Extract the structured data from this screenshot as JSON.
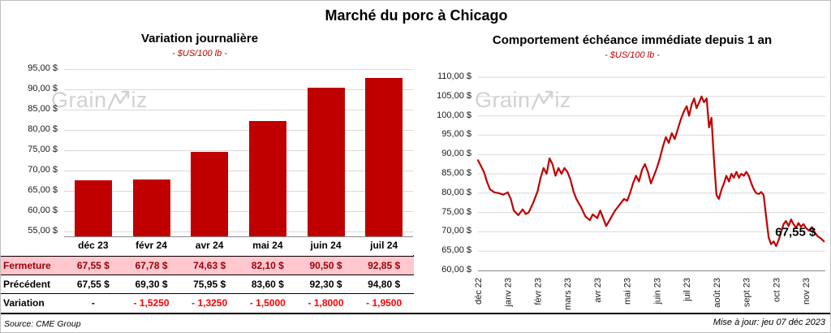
{
  "page_title": "Marché du porc à Chicago",
  "footer": {
    "source": "Source: CME Group",
    "updated": "Mise à jour: jeu 07 déc 2023"
  },
  "watermark": {
    "part1": "Grain",
    "part2": "iz"
  },
  "colors": {
    "accent_red": "#C00000",
    "negative_red": "#FF0000",
    "table_bad_bg": "#FFC7CE",
    "table_bad_text": "#9C0006",
    "gridline": "#D9D9D9",
    "watermark_gray": "#D2D2D2"
  },
  "summary_table": {
    "rows": [
      {
        "label": "Fermeture",
        "style": "bad",
        "values": [
          "67,55 $",
          "67,78 $",
          "74,63 $",
          "82,10 $",
          "90,50 $",
          "92,85 $"
        ]
      },
      {
        "label": "Précédent",
        "style": "plain",
        "values": [
          "67,55 $",
          "69,30 $",
          "75,95 $",
          "83,60 $",
          "92,30 $",
          "94,80 $"
        ]
      },
      {
        "label": "Variation",
        "style": "neg",
        "values": [
          "-",
          "- 1,5250",
          "- 1,3250",
          "- 1,5000",
          "- 1,8000",
          "- 1,9500"
        ]
      }
    ]
  },
  "chart_data": [
    {
      "type": "bar",
      "title": "Variation  journalière",
      "subtitle": "- $US/100 lb -",
      "categories": [
        "déc 23",
        "févr 24",
        "avr 24",
        "mai 24",
        "juin 24",
        "juil 24"
      ],
      "values": [
        67.55,
        67.78,
        74.63,
        82.1,
        90.5,
        92.85
      ],
      "ylim": [
        53.75,
        95
      ],
      "ytick_values": [
        95,
        90,
        85,
        80,
        75,
        70,
        65,
        60,
        55
      ],
      "ytick_labels": [
        "95,00 $",
        "90,00 $",
        "85,00 $",
        "80,00 $",
        "75,00 $",
        "70,00 $",
        "65,00 $",
        "60,00 $",
        "55,00 $"
      ],
      "bar_color": "#C00000",
      "grid": true,
      "legend": "none"
    },
    {
      "type": "line",
      "title": "Comportement  échéance  immédiate  depuis 1 an",
      "subtitle": "- $US/100 lb -",
      "x_months": [
        "déc 22",
        "janv 23",
        "févr 23",
        "mars 23",
        "avr 23",
        "mai 23",
        "juin 23",
        "juil 23",
        "août 23",
        "sept 23",
        "oct 23",
        "nov 23"
      ],
      "xmax": 11.65,
      "ylim": [
        60,
        110
      ],
      "ytick_values": [
        110,
        105,
        100,
        95,
        90,
        85,
        80,
        75,
        70,
        65,
        60
      ],
      "ytick_labels": [
        "110,00 $",
        "105,00 $",
        "100,00 $",
        "95,00 $",
        "90,00 $",
        "85,00 $",
        "80,00 $",
        "75,00 $",
        "70,00 $",
        "65,00 $",
        "60,00 $"
      ],
      "line_color": "#C00000",
      "grid": true,
      "legend": "none",
      "annotation": {
        "text": "67,55 $",
        "x": 10.65,
        "y": 69.8
      },
      "points": [
        [
          0,
          88.5
        ],
        [
          0.1,
          87
        ],
        [
          0.2,
          85.5
        ],
        [
          0.3,
          83
        ],
        [
          0.4,
          81
        ],
        [
          0.55,
          80.2
        ],
        [
          0.7,
          80
        ],
        [
          0.85,
          79.6
        ],
        [
          1,
          80.2
        ],
        [
          1.1,
          78.5
        ],
        [
          1.2,
          75.5
        ],
        [
          1.35,
          74.3
        ],
        [
          1.5,
          75.8
        ],
        [
          1.6,
          74.6
        ],
        [
          1.7,
          75
        ],
        [
          1.85,
          77.5
        ],
        [
          2,
          80.5
        ],
        [
          2.1,
          84
        ],
        [
          2.2,
          86.5
        ],
        [
          2.3,
          85
        ],
        [
          2.4,
          89
        ],
        [
          2.5,
          87.5
        ],
        [
          2.6,
          84.5
        ],
        [
          2.7,
          86.5
        ],
        [
          2.8,
          85
        ],
        [
          2.9,
          86.5
        ],
        [
          3,
          85.5
        ],
        [
          3.1,
          83.5
        ],
        [
          3.2,
          80.5
        ],
        [
          3.3,
          78.5
        ],
        [
          3.45,
          76.5
        ],
        [
          3.6,
          74
        ],
        [
          3.75,
          73
        ],
        [
          3.85,
          74.5
        ],
        [
          4,
          73.5
        ],
        [
          4.1,
          75.5
        ],
        [
          4.2,
          73.5
        ],
        [
          4.3,
          71.5
        ],
        [
          4.45,
          73.5
        ],
        [
          4.6,
          75.5
        ],
        [
          4.75,
          77
        ],
        [
          4.9,
          78.5
        ],
        [
          5,
          78
        ],
        [
          5.1,
          80
        ],
        [
          5.2,
          82.5
        ],
        [
          5.3,
          84.5
        ],
        [
          5.4,
          83
        ],
        [
          5.5,
          86
        ],
        [
          5.6,
          87.5
        ],
        [
          5.7,
          85.5
        ],
        [
          5.8,
          82.5
        ],
        [
          5.9,
          84.5
        ],
        [
          6,
          86.5
        ],
        [
          6.1,
          89
        ],
        [
          6.2,
          92
        ],
        [
          6.3,
          94.5
        ],
        [
          6.4,
          93
        ],
        [
          6.5,
          95.5
        ],
        [
          6.6,
          94
        ],
        [
          6.7,
          96.5
        ],
        [
          6.8,
          99
        ],
        [
          6.9,
          101
        ],
        [
          7,
          102.5
        ],
        [
          7.08,
          100
        ],
        [
          7.17,
          103
        ],
        [
          7.25,
          104.5
        ],
        [
          7.33,
          102
        ],
        [
          7.42,
          103.5
        ],
        [
          7.5,
          105
        ],
        [
          7.58,
          103.5
        ],
        [
          7.67,
          104.5
        ],
        [
          7.75,
          97
        ],
        [
          7.83,
          99.5
        ],
        [
          7.92,
          88
        ],
        [
          8,
          79.5
        ],
        [
          8.08,
          78.5
        ],
        [
          8.17,
          81
        ],
        [
          8.25,
          82.5
        ],
        [
          8.33,
          84.5
        ],
        [
          8.42,
          83
        ],
        [
          8.5,
          85
        ],
        [
          8.58,
          84
        ],
        [
          8.67,
          85.5
        ],
        [
          8.75,
          84
        ],
        [
          8.83,
          85
        ],
        [
          8.92,
          84.5
        ],
        [
          9,
          85.5
        ],
        [
          9.08,
          84.5
        ],
        [
          9.17,
          82.5
        ],
        [
          9.25,
          81
        ],
        [
          9.33,
          80
        ],
        [
          9.42,
          79.8
        ],
        [
          9.5,
          80.3
        ],
        [
          9.58,
          79.5
        ],
        [
          9.67,
          73.5
        ],
        [
          9.75,
          68.5
        ],
        [
          9.83,
          66.8
        ],
        [
          9.92,
          67.5
        ],
        [
          10,
          66.3
        ],
        [
          10.08,
          67.8
        ],
        [
          10.17,
          70
        ],
        [
          10.25,
          72
        ],
        [
          10.33,
          72.8
        ],
        [
          10.42,
          71.5
        ],
        [
          10.5,
          73.2
        ],
        [
          10.58,
          72
        ],
        [
          10.67,
          71
        ],
        [
          10.75,
          72.3
        ],
        [
          10.83,
          71.3
        ],
        [
          10.92,
          72
        ],
        [
          11,
          71
        ],
        [
          11.1,
          70.3
        ],
        [
          11.2,
          71.2
        ],
        [
          11.3,
          69.8
        ],
        [
          11.4,
          68.8
        ],
        [
          11.5,
          68.3
        ],
        [
          11.6,
          67.55
        ]
      ]
    }
  ]
}
